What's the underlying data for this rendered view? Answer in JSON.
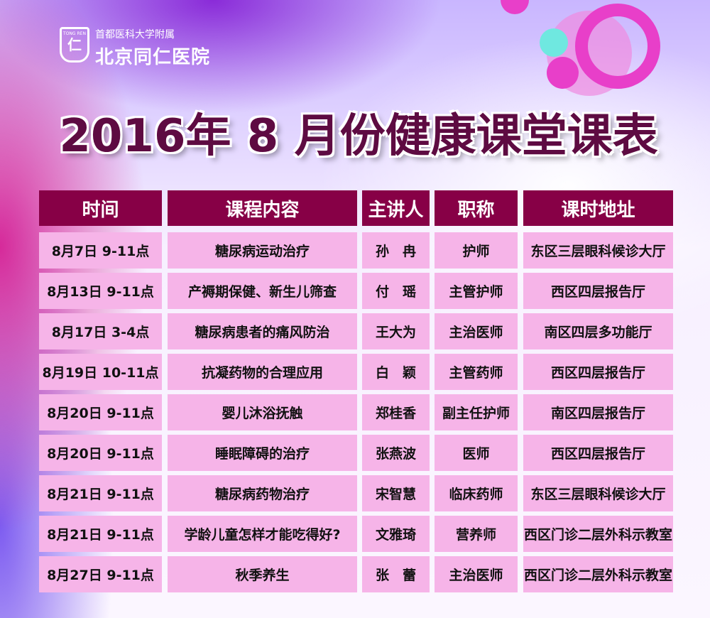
{
  "logo": {
    "tag": "TONG REN",
    "mark": "仁",
    "affiliation": "首都医科大学附属",
    "hospital": "北京同仁医院"
  },
  "title": "2016年 8 月份健康课堂课表",
  "colors": {
    "header": "#870046",
    "cell": "#f6b4e8",
    "title": "#5e0b42"
  },
  "columns": [
    "时间",
    "课程内容",
    "主讲人",
    "职称",
    "课时地址"
  ],
  "rows": [
    [
      "8月7日 9-11点",
      "糖尿病运动治疗",
      "孙　冉",
      "护师",
      "东区三层眼科候诊大厅"
    ],
    [
      "8月13日 9-11点",
      "产褥期保健、新生儿筛查",
      "付　瑶",
      "主管护师",
      "西区四层报告厅"
    ],
    [
      "8月17日 3-4点",
      "糖尿病患者的痛风防治",
      "王大为",
      "主治医师",
      "南区四层多功能厅"
    ],
    [
      "8月19日 10-11点",
      "抗凝药物的合理应用",
      "白　颖",
      "主管药师",
      "西区四层报告厅"
    ],
    [
      "8月20日 9-11点",
      "婴儿沐浴抚触",
      "郑桂香",
      "副主任护师",
      "南区四层报告厅"
    ],
    [
      "8月20日 9-11点",
      "睡眠障碍的治疗",
      "张燕波",
      "医师",
      "西区四层报告厅"
    ],
    [
      "8月21日 9-11点",
      "糖尿病药物治疗",
      "宋智慧",
      "临床药师",
      "东区三层眼科候诊大厅"
    ],
    [
      "8月21日 9-11点",
      "学龄儿童怎样才能吃得好?",
      "文雅琦",
      "营养师",
      "西区门诊二层外科示教室"
    ],
    [
      "8月27日 9-11点",
      "秋季养生",
      "张　蕾",
      "主治医师",
      "西区门诊二层外科示教室"
    ]
  ]
}
